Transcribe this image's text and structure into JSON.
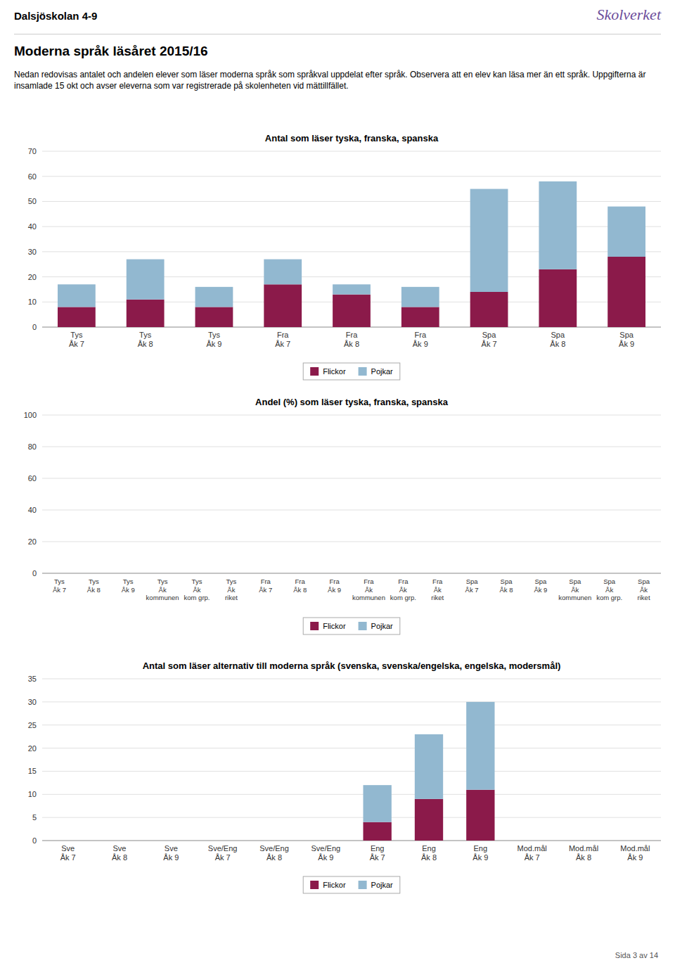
{
  "header_school": "Dalsjöskolan 4-9",
  "logo": "Skolverket",
  "header_title": "Moderna språk läsåret 2015/16",
  "header_text": "Nedan redovisas antalet och andelen elever som läser moderna språk som språkval uppdelat efter språk. Observera att en elev kan läsa mer än ett språk. Uppgifterna är insamlade 15 okt och avser eleverna som var registrerade på skolenheten vid mättillfället.",
  "page_footer": "Sida 3 av 14",
  "chart_data": [
    {
      "type": "bar",
      "title": "Antal som läser tyska, franska, spanska",
      "categories": [
        "Tys\nÅk 7",
        "Tys\nÅk 8",
        "Tys\nÅk 9",
        "Fra\nÅk 7",
        "Fra\nÅk 8",
        "Fra\nÅk 9",
        "Spa\nÅk 7",
        "Spa\nÅk 8",
        "Spa\nÅk 9"
      ],
      "series": [
        {
          "name": "Flickor",
          "color": "#8B1A4A",
          "values": [
            8,
            11,
            8,
            17,
            13,
            8,
            14,
            23,
            28
          ]
        },
        {
          "name": "Pojkar",
          "color": "#92B8D0",
          "values": [
            9,
            16,
            8,
            10,
            4,
            8,
            41,
            35,
            20
          ]
        }
      ],
      "ylim": [
        0,
        70
      ],
      "yticks": [
        0,
        10,
        20,
        30,
        40,
        50,
        60,
        70
      ],
      "stacked": true,
      "grid": true,
      "legend": "bottom"
    },
    {
      "type": "bar",
      "title": "Andel (%) som läser tyska, franska, spanska",
      "categories": [
        "Tys\nÅk 7",
        "Tys\nÅk 8",
        "Tys\nÅk 9",
        "Tys\nÅk\nkommunen",
        "Tys\nÅk\nkom grp.",
        "Tys\nÅk\nriket",
        "Fra\nÅk 7",
        "Fra\nÅk 8",
        "Fra\nÅk 9",
        "Fra\nÅk\nkommunen",
        "Fra\nÅk\nkom grp.",
        "Fra\nÅk\nriket",
        "Spa\nÅk 7",
        "Spa\nÅk 8",
        "Spa\nÅk 9",
        "Spa\nÅk\nkommunen",
        "Spa\nÅk\nkom grp.",
        "Spa\nÅk\nriket"
      ],
      "series": [
        {
          "name": "Flickor",
          "color": "#8B1A4A",
          "values": [
            0,
            0,
            0,
            0,
            0,
            0,
            0,
            0,
            0,
            0,
            0,
            0,
            0,
            0,
            0,
            0,
            0,
            0
          ]
        },
        {
          "name": "Pojkar",
          "color": "#92B8D0",
          "values": [
            0,
            0,
            0,
            0,
            0,
            0,
            0,
            0,
            0,
            0,
            0,
            0,
            0,
            0,
            0,
            0,
            0,
            0
          ]
        }
      ],
      "ylim": [
        0,
        100
      ],
      "yticks": [
        0,
        20,
        40,
        60,
        80,
        100
      ],
      "stacked": true,
      "grid": true,
      "legend": "bottom"
    },
    {
      "type": "bar",
      "title": "Antal som läser alternativ till moderna språk (svenska, svenska/engelska, engelska, modersmål)",
      "categories": [
        "Sve\nÅk 7",
        "Sve\nÅk 8",
        "Sve\nÅk 9",
        "Sve/Eng\nÅk 7",
        "Sve/Eng\nÅk 8",
        "Sve/Eng\nÅk 9",
        "Eng\nÅk 7",
        "Eng\nÅk 8",
        "Eng\nÅk 9",
        "Mod.mål\nÅk 7",
        "Mod.mål\nÅk 8",
        "Mod.mål\nÅk 9"
      ],
      "series": [
        {
          "name": "Flickor",
          "color": "#8B1A4A",
          "values": [
            0,
            0,
            0,
            0,
            0,
            0,
            4,
            9,
            11,
            0,
            0,
            0
          ]
        },
        {
          "name": "Pojkar",
          "color": "#92B8D0",
          "values": [
            0,
            0,
            0,
            0,
            0,
            0,
            8,
            14,
            19,
            0,
            0,
            0
          ]
        }
      ],
      "ylim": [
        0,
        35
      ],
      "yticks": [
        0,
        5,
        10,
        15,
        20,
        25,
        30,
        35
      ],
      "stacked": true,
      "grid": true,
      "legend": "bottom"
    }
  ]
}
